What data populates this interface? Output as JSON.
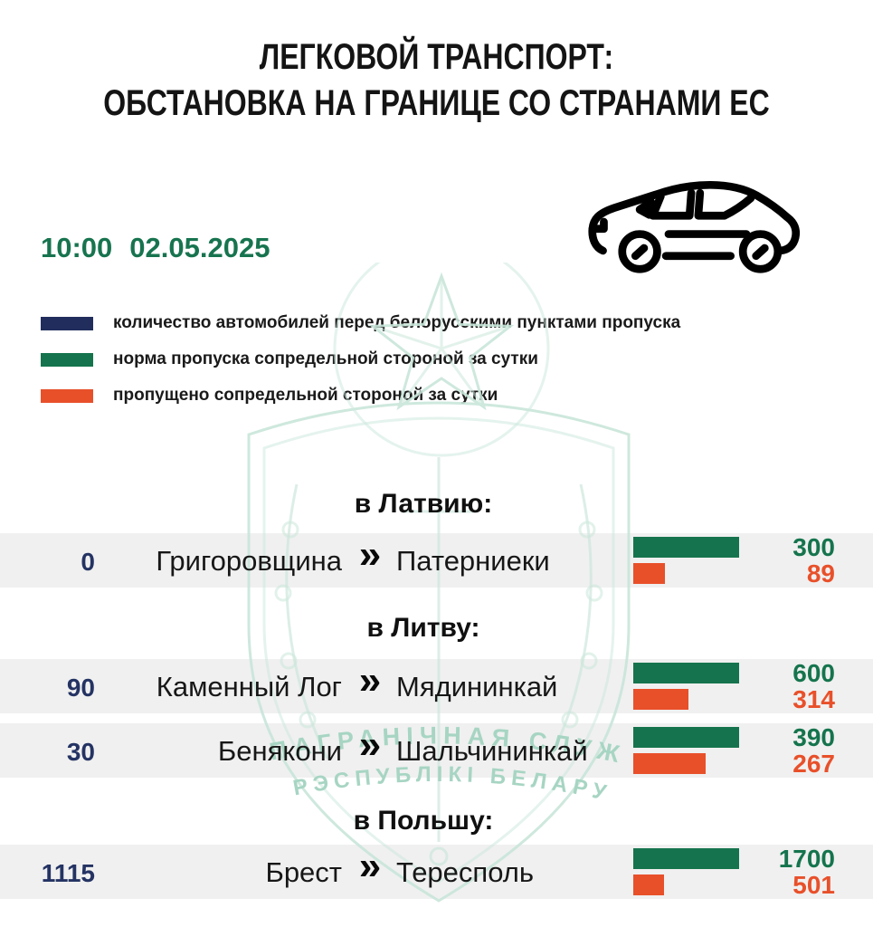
{
  "title": {
    "line1": "ЛЕГКОВОЙ ТРАНСПОРТ:",
    "line2": "ОБСТАНОВКА НА ГРАНИЦЕ СО СТРАНАМИ ЕС"
  },
  "timestamp": {
    "time": "10:00",
    "date": "02.05.2025"
  },
  "legend": [
    {
      "color": "#212d5c",
      "label": "количество автомобилей перед белорусскими пунктами пропуска"
    },
    {
      "color": "#15744d",
      "label": "норма пропуска сопредельной стороной за сутки"
    },
    {
      "color": "#e8502a",
      "label": "пропущено сопредельной стороной за сутки"
    }
  ],
  "watermark": {
    "line1": "ПАГРАНІЧНАЯ СЛУЖБА",
    "line2": "РЭСПУБЛІКІ БЕЛАРУСЬ"
  },
  "chevron": "»",
  "colors": {
    "queue_number": "#243363",
    "norm_bar": "#15744d",
    "passed_bar": "#e8502a",
    "norm_value": "#15744d",
    "passed_value": "#e8502a",
    "time_text": "#17744f",
    "watermark_teal": "#c9e6da"
  },
  "chart_data": {
    "type": "bar",
    "title": "ЛЕГКОВОЙ ТРАНСПОРТ: ОБСТАНОВКА НА ГРАНИЦЕ СО СТРАНАМИ ЕС",
    "timestamp": "10:00 02.05.2025",
    "legend_entries": [
      "количество автомобилей перед белорусскими пунктами пропуска",
      "норма пропуска сопредельной стороной за сутки",
      "пропущено сопредельной стороной за сутки"
    ],
    "sections": [
      {
        "heading": "в Латвию:",
        "rows": [
          {
            "queue": 0,
            "from": "Григоровщина",
            "to": "Патерниеки",
            "norm": 300,
            "passed": 89
          }
        ]
      },
      {
        "heading": "в Литву:",
        "rows": [
          {
            "queue": 90,
            "from": "Каменный Лог",
            "to": "Мядининкай",
            "norm": 600,
            "passed": 314
          },
          {
            "queue": 30,
            "from": "Бенякони",
            "to": "Шальчининкай",
            "norm": 390,
            "passed": 267
          }
        ]
      },
      {
        "heading": "в Польшу:",
        "rows": [
          {
            "queue": 1115,
            "from": "Брест",
            "to": "Тересполь",
            "norm": 1700,
            "passed": 501
          }
        ]
      }
    ]
  }
}
